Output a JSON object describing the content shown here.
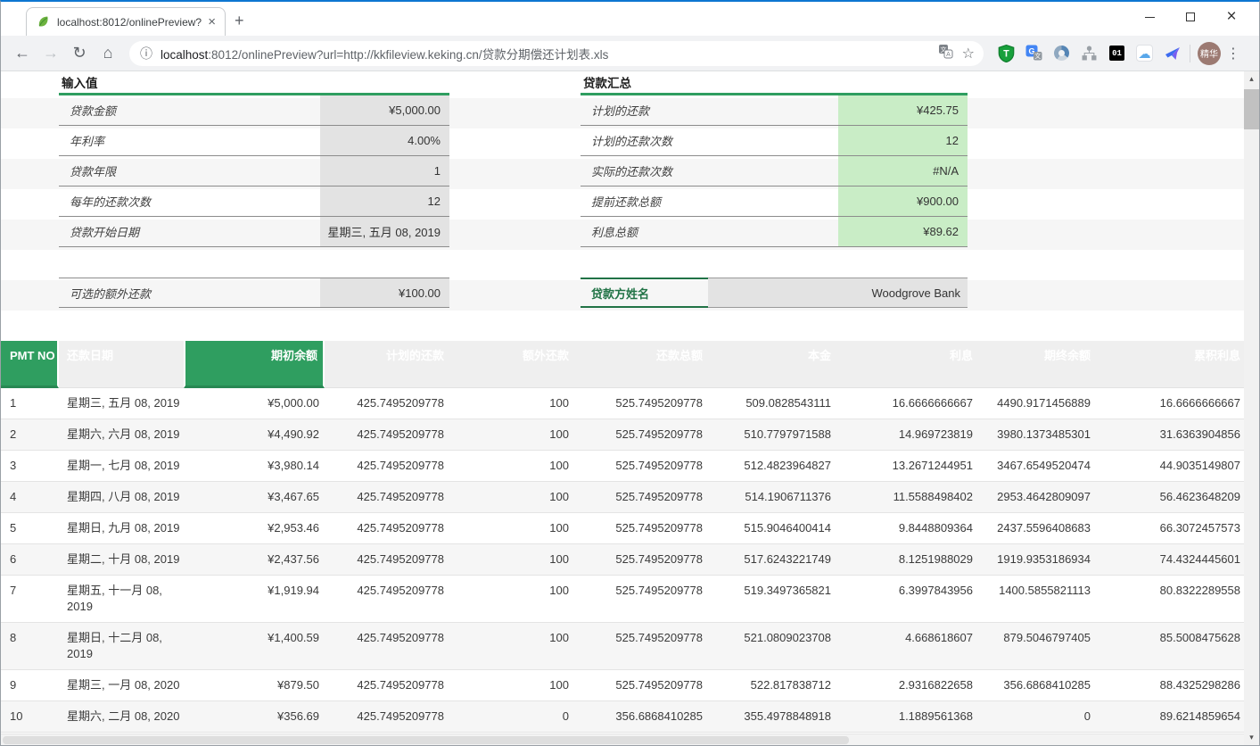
{
  "browser": {
    "tab_title": "localhost:8012/onlinePreview?",
    "url_host": "localhost",
    "url_rest": ":8012/onlinePreview?url=http://kkfileview.keking.cn/贷款分期偿还计划表.xls",
    "profile_name": "精华",
    "ext_shield_letter": "T",
    "ext_translate_g": "G",
    "ext_translate_wen": "文",
    "ext_badge": "01",
    "inbar_translate_wen": "文",
    "inbar_translate_a": "A"
  },
  "icons": {
    "back": "←",
    "forward": "→",
    "reload": "↻",
    "home": "⌂",
    "info": "ⓘ",
    "star": "☆",
    "cloud": "☁",
    "kebab": "⋮",
    "tab_close": "×",
    "win_close": "×",
    "new_tab": "+",
    "scroll_up": "▴",
    "scroll_down": "▾"
  },
  "colors": {
    "header_green": "#2f9e60",
    "value_green": "#c9edc6",
    "value_grey": "#e3e3e3",
    "lender_green_text": "#217346"
  },
  "input_table": {
    "title": "输入值",
    "rows": [
      {
        "label": "贷款金额",
        "value": "¥5,000.00"
      },
      {
        "label": "年利率",
        "value": "4.00%"
      },
      {
        "label": "贷款年限",
        "value": "1"
      },
      {
        "label": "每年的还款次数",
        "value": "12"
      },
      {
        "label": "贷款开始日期",
        "value": "星期三, 五月 08, 2019"
      }
    ],
    "extra_row": {
      "label": "可选的额外还款",
      "value": "¥100.00"
    }
  },
  "summary_table": {
    "title": "贷款汇总",
    "rows": [
      {
        "label": "计划的还款",
        "value": "¥425.75"
      },
      {
        "label": "计划的还款次数",
        "value": "12"
      },
      {
        "label": "实际的还款次数",
        "value": "#N/A"
      },
      {
        "label": "提前还款总额",
        "value": "¥900.00"
      },
      {
        "label": "利息总额",
        "value": "¥89.62"
      }
    ],
    "lender_row": {
      "label": "贷款方姓名",
      "value": "Woodgrove Bank"
    }
  },
  "schedule_table": {
    "headers": [
      "PMT NO",
      "还款日期",
      "期初余额",
      "计划的还款",
      "额外还款",
      "还款总额",
      "本金",
      "利息",
      "期终余额",
      "累积利息"
    ],
    "rows": [
      [
        "1",
        "星期三, 五月 08, 2019",
        "¥5,000.00",
        "425.7495209778",
        "100",
        "525.7495209778",
        "509.0828543111",
        "16.6666666667",
        "4490.9171456889",
        "16.6666666667"
      ],
      [
        "2",
        "星期六, 六月 08, 2019",
        "¥4,490.92",
        "425.7495209778",
        "100",
        "525.7495209778",
        "510.7797971588",
        "14.969723819",
        "3980.1373485301",
        "31.6363904856"
      ],
      [
        "3",
        "星期一, 七月 08, 2019",
        "¥3,980.14",
        "425.7495209778",
        "100",
        "525.7495209778",
        "512.4823964827",
        "13.2671244951",
        "3467.6549520474",
        "44.9035149807"
      ],
      [
        "4",
        "星期四, 八月 08, 2019",
        "¥3,467.65",
        "425.7495209778",
        "100",
        "525.7495209778",
        "514.1906711376",
        "11.5588498402",
        "2953.4642809097",
        "56.4623648209"
      ],
      [
        "5",
        "星期日, 九月 08, 2019",
        "¥2,953.46",
        "425.7495209778",
        "100",
        "525.7495209778",
        "515.9046400414",
        "9.8448809364",
        "2437.5596408683",
        "66.3072457573"
      ],
      [
        "6",
        "星期二, 十月 08, 2019",
        "¥2,437.56",
        "425.7495209778",
        "100",
        "525.7495209778",
        "517.6243221749",
        "8.1251988029",
        "1919.9353186934",
        "74.4324445601"
      ],
      [
        "7",
        "星期五, 十一月 08,\n2019",
        "¥1,919.94",
        "425.7495209778",
        "100",
        "525.7495209778",
        "519.3497365821",
        "6.3997843956",
        "1400.5855821113",
        "80.8322289558"
      ],
      [
        "8",
        "星期日, 十二月 08,\n2019",
        "¥1,400.59",
        "425.7495209778",
        "100",
        "525.7495209778",
        "521.0809023708",
        "4.668618607",
        "879.5046797405",
        "85.5008475628"
      ],
      [
        "9",
        "星期三, 一月 08, 2020",
        "¥879.50",
        "425.7495209778",
        "100",
        "525.7495209778",
        "522.817838712",
        "2.9316822658",
        "356.6868410285",
        "88.4325298286"
      ],
      [
        "10",
        "星期六, 二月 08, 2020",
        "¥356.69",
        "425.7495209778",
        "0",
        "356.6868410285",
        "355.4978848918",
        "1.1889561368",
        "0",
        "89.6214859654"
      ]
    ]
  }
}
